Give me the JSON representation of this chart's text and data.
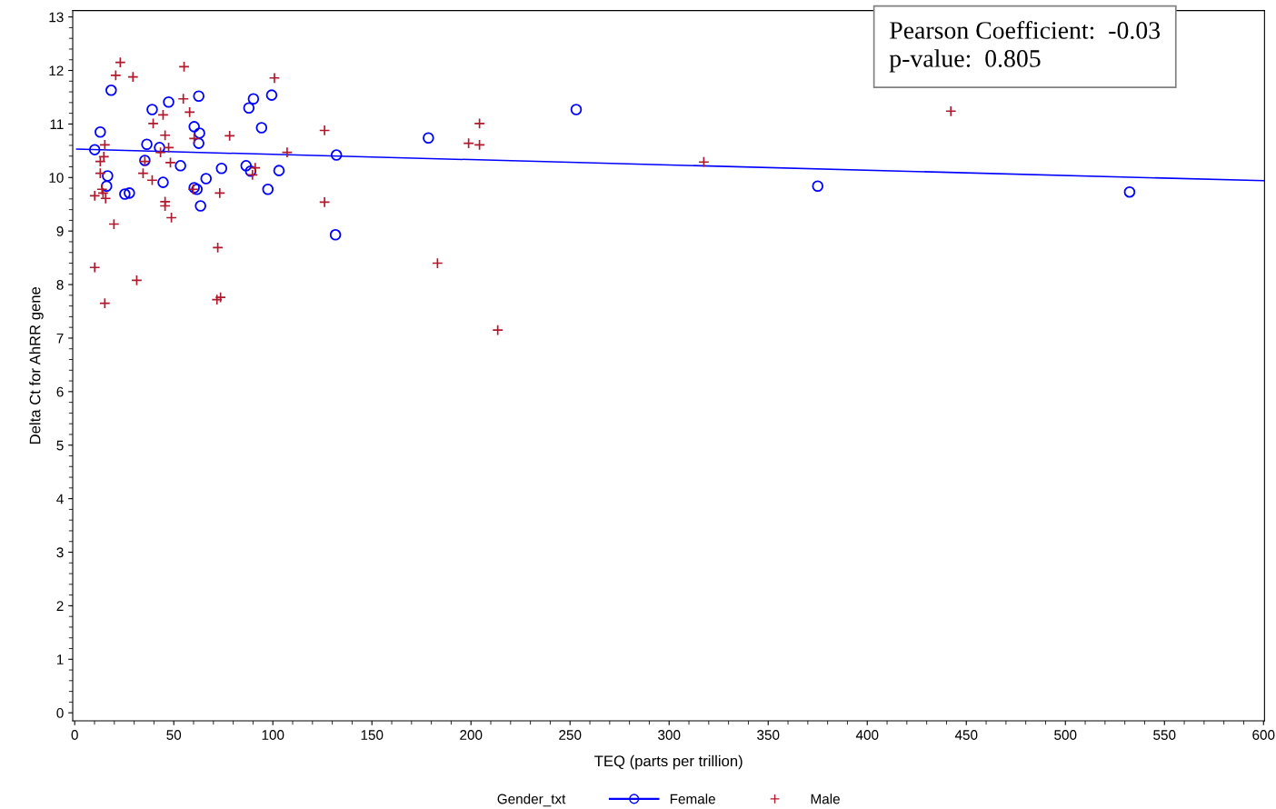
{
  "chart_data": {
    "type": "scatter",
    "xlabel": "TEQ (parts per trillion)",
    "ylabel": "Delta Ct for AhRR gene",
    "legend_title": "Gender_txt",
    "legend": "bottom",
    "grid": false,
    "xlim": [
      -1,
      600.5
    ],
    "ylim": [
      -0.15,
      13.12
    ],
    "xticks": [
      0,
      50,
      100,
      150,
      200,
      250,
      300,
      350,
      400,
      450,
      500,
      550,
      600
    ],
    "yticks": [
      0,
      1,
      2,
      3,
      4,
      5,
      6,
      7,
      8,
      9,
      10,
      11,
      12,
      13
    ],
    "annotations": [
      "Pearson Coefficient:  -0.03\np-value:  0.805"
    ],
    "series": [
      {
        "name": "Female",
        "color": "#0000ff",
        "marker": "circle",
        "x": [
          10.1,
          12.9,
          18.4,
          16.6,
          16.1,
          25.3,
          27.6,
          36.4,
          35.4,
          39.1,
          42.8,
          47.4,
          44.6,
          53.4,
          62.6,
          60.3,
          63.0,
          62.6,
          60.3,
          61.7,
          66.3,
          63.5,
          74.1,
          87.9,
          90.2,
          99.4,
          94.3,
          86.5,
          88.8,
          97.5,
          103.1,
          132.1,
          131.6,
          178.5,
          253.1,
          375.0,
          532.4
        ],
        "values": [
          10.52,
          10.85,
          11.63,
          10.03,
          9.84,
          9.69,
          9.71,
          10.62,
          10.32,
          11.27,
          10.56,
          11.41,
          9.91,
          10.22,
          11.52,
          10.95,
          10.83,
          10.64,
          9.81,
          9.78,
          9.98,
          9.47,
          10.17,
          11.3,
          11.47,
          11.54,
          10.93,
          10.22,
          10.12,
          9.78,
          10.13,
          10.42,
          8.93,
          10.74,
          11.27,
          9.84,
          9.73
        ]
      },
      {
        "name": "Male",
        "color": "#b2182b",
        "marker": "cross",
        "x": [
          23.0,
          20.7,
          29.4,
          55.2,
          100.8,
          54.8,
          58.0,
          44.6,
          39.6,
          45.6,
          60.3,
          78.2,
          126.1,
          15.2,
          14.7,
          12.9,
          47.4,
          43.3,
          107.2,
          35.4,
          48.3,
          91.1,
          89.7,
          12.9,
          34.5,
          39.1,
          59.8,
          73.2,
          13.8,
          14.3,
          10.1,
          15.6,
          45.6,
          45.6,
          48.8,
          126.1,
          19.8,
          72.2,
          10.1,
          31.3,
          15.2,
          73.6,
          71.8,
          204.3,
          198.8,
          204.3,
          183.1,
          213.5,
          317.5,
          442.2
        ],
        "values": [
          12.15,
          11.91,
          11.88,
          12.07,
          11.86,
          11.47,
          11.22,
          11.17,
          11.01,
          10.79,
          10.73,
          10.78,
          10.88,
          10.61,
          10.39,
          10.3,
          10.56,
          10.47,
          10.47,
          10.3,
          10.28,
          10.18,
          10.05,
          10.08,
          10.08,
          9.95,
          9.78,
          9.71,
          9.78,
          9.71,
          9.66,
          9.61,
          9.55,
          9.47,
          9.25,
          9.54,
          9.13,
          8.69,
          8.32,
          8.08,
          7.65,
          7.76,
          7.72,
          11.01,
          10.64,
          10.61,
          8.4,
          7.15,
          10.29,
          11.24
        ]
      },
      {
        "type": "line",
        "color": "#0000ff",
        "x": [
          1,
          600
        ],
        "values": [
          10.53,
          9.94
        ]
      }
    ]
  }
}
